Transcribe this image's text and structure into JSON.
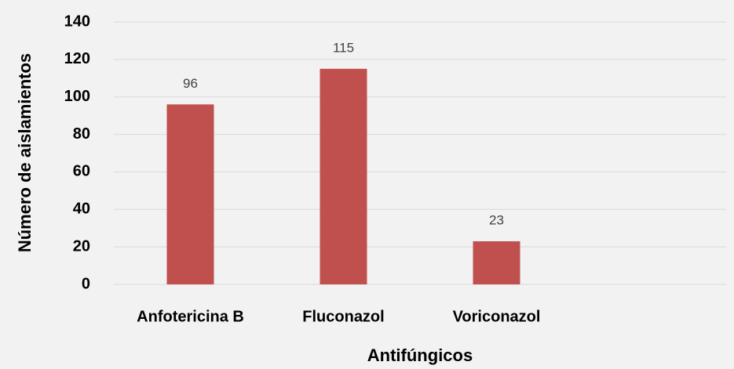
{
  "chart_data": {
    "type": "bar",
    "categories": [
      "Anfotericina B",
      "Fluconazol",
      "Voriconazol",
      null
    ],
    "values": [
      96,
      115,
      23,
      null
    ],
    "color": "#c0504d",
    "xlabel": "Antifúngicos",
    "ylabel": "Número de aislamientos",
    "ylim": [
      0,
      140
    ],
    "yticks": [
      0,
      20,
      40,
      60,
      80,
      100,
      120,
      140
    ],
    "grid": true,
    "data_labels": true
  }
}
